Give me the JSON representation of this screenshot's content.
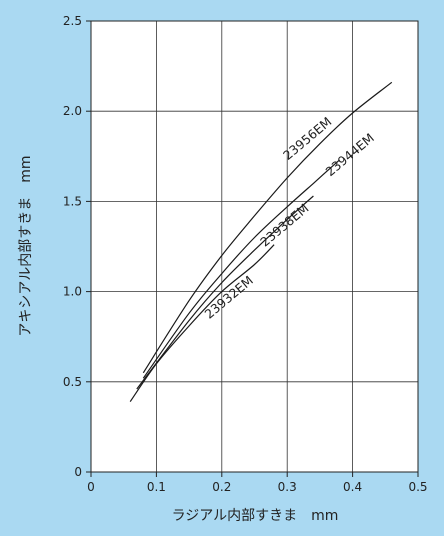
{
  "chart_data": {
    "type": "line",
    "xlabel": "ラジアル内部すきま　mm",
    "ylabel": "アキシアル内部すきま　mm",
    "xlim": [
      0,
      0.5
    ],
    "ylim": [
      0,
      2.5
    ],
    "x_ticks": [
      "0",
      "0.1",
      "0.2",
      "0.3",
      "0.4",
      "0.5"
    ],
    "y_ticks": [
      "0",
      "0.5",
      "1.0",
      "1.5",
      "2.0",
      "2.5"
    ],
    "grid": true,
    "colors": {
      "background": "#aad9f2",
      "plot_area": "#ffffff",
      "line": "#222222"
    },
    "series": [
      {
        "name": "23956EM",
        "x": [
          0.08,
          0.15,
          0.2,
          0.25,
          0.3,
          0.35,
          0.4,
          0.46
        ],
        "y": [
          0.55,
          0.95,
          1.2,
          1.42,
          1.63,
          1.82,
          1.99,
          2.16
        ]
      },
      {
        "name": "23944EM",
        "x": [
          0.08,
          0.15,
          0.2,
          0.25,
          0.3,
          0.34,
          0.38
        ],
        "y": [
          0.52,
          0.88,
          1.1,
          1.3,
          1.47,
          1.6,
          1.73
        ]
      },
      {
        "name": "23938EM",
        "x": [
          0.07,
          0.15,
          0.2,
          0.25,
          0.3,
          0.34
        ],
        "y": [
          0.46,
          0.84,
          1.05,
          1.23,
          1.4,
          1.53
        ]
      },
      {
        "name": "23932EM",
        "x": [
          0.06,
          0.1,
          0.15,
          0.2,
          0.25,
          0.28
        ],
        "y": [
          0.39,
          0.6,
          0.81,
          1.0,
          1.15,
          1.26
        ]
      }
    ]
  }
}
